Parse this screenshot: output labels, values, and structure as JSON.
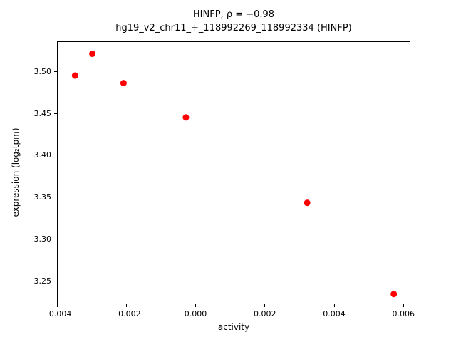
{
  "chart_data": {
    "type": "scatter",
    "title": "HINFP, ρ = −0.98",
    "subtitle": "hg19_v2_chr11_+_118992269_118992334 (HINFP)",
    "xlabel": "activity",
    "ylabel": "expression (log₂tpm)",
    "marker": "circle",
    "marker_color": "#ff0000",
    "marker_radius": 4.5,
    "grid": false,
    "legend": null,
    "xlim": [
      -0.004,
      0.0062
    ],
    "ylim": [
      3.222,
      3.536
    ],
    "xticks": [
      -0.004,
      -0.002,
      0.0,
      0.002,
      0.004,
      0.006
    ],
    "xtick_labels": [
      "−0.004",
      "−0.002",
      "0.000",
      "0.002",
      "0.004",
      "0.006"
    ],
    "yticks": [
      3.25,
      3.3,
      3.35,
      3.4,
      3.45,
      3.5
    ],
    "ytick_labels": [
      "3.25",
      "3.30",
      "3.35",
      "3.40",
      "3.45",
      "3.50"
    ],
    "points": [
      {
        "x": -0.0035,
        "y": 3.496
      },
      {
        "x": -0.003,
        "y": 3.522
      },
      {
        "x": -0.0021,
        "y": 3.487
      },
      {
        "x": -0.0003,
        "y": 3.446
      },
      {
        "x": 0.0032,
        "y": 3.344
      },
      {
        "x": 0.0057,
        "y": 3.235
      }
    ]
  }
}
